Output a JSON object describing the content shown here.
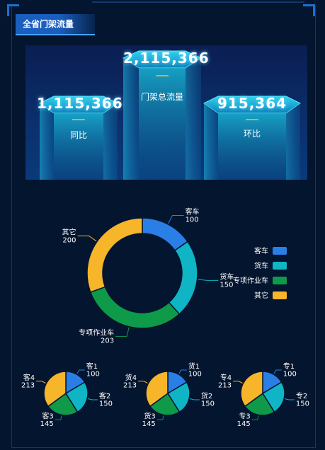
{
  "panel": {
    "title": "全省门架流量"
  },
  "stats": {
    "total": {
      "value": "2,115,366",
      "label": "门架总流量"
    },
    "yoy": {
      "value": "1,115,366",
      "label": "同比"
    },
    "mom": {
      "value": "915,364",
      "label": "环比"
    }
  },
  "colors": {
    "blue": "#2a7fe6",
    "teal": "#0fb5c4",
    "green": "#0e9a49",
    "yellow": "#f7b52a"
  },
  "chart_data": [
    {
      "type": "pie",
      "donut": true,
      "categories": [
        "客车",
        "货车",
        "专项作业车",
        "其它"
      ],
      "values": [
        100,
        150,
        203,
        200
      ],
      "legend": [
        "客车",
        "货车",
        "专项作业车",
        "其它"
      ]
    },
    {
      "type": "pie",
      "categories": [
        "客1",
        "客2",
        "客3",
        "客4"
      ],
      "values": [
        100,
        150,
        145,
        213
      ]
    },
    {
      "type": "pie",
      "categories": [
        "货1",
        "货2",
        "货3",
        "货4"
      ],
      "values": [
        100,
        150,
        145,
        213
      ]
    },
    {
      "type": "pie",
      "categories": [
        "专1",
        "专2",
        "专3",
        "专4"
      ],
      "values": [
        100,
        150,
        145,
        213
      ]
    }
  ]
}
